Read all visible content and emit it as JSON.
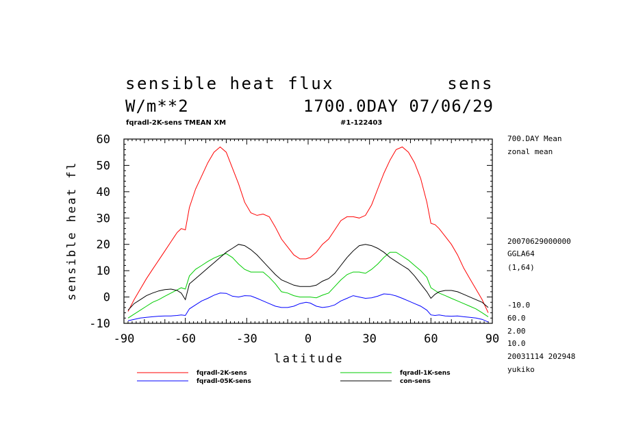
{
  "header": {
    "title": "sensible heat flux",
    "var_code": "sens",
    "units": "W/m**2",
    "time": "1700.0DAY 07/06/29",
    "subtitle_left": "fqradl-2K-sens TMEAN XM",
    "subtitle_right": "#1-122403"
  },
  "side_info": [
    "700.DAY Mean",
    "zonal mean",
    "20070629000000",
    "GGLA64",
    "(1,64)",
    "-10.0",
    "60.0",
    "2.00",
    "10.0",
    "20031114 202948",
    "yukiko"
  ],
  "chart_data": {
    "type": "line",
    "title": "sensible heat flux",
    "xlabel": "latitude",
    "ylabel": "sensible heat fl",
    "xlim": [
      -90,
      90
    ],
    "ylim": [
      -10,
      60
    ],
    "xticks": [
      -90,
      -60,
      -30,
      0,
      30,
      60,
      90
    ],
    "xtick_labels": [
      "-90",
      "-60",
      "-30",
      "0",
      "30",
      "60",
      "90"
    ],
    "yticks": [
      -10,
      0,
      10,
      20,
      30,
      40,
      50,
      60
    ],
    "ytick_labels": [
      "-10",
      "0",
      "10",
      "20",
      "30",
      "40",
      "50",
      "60"
    ],
    "grid": false,
    "legend_position": "below",
    "series": [
      {
        "name": "fqradl-2K-sens",
        "color": "#ff0000",
        "x": [
          -88,
          -85,
          -82,
          -79,
          -76,
          -73,
          -70,
          -67,
          -64,
          -62,
          -60,
          -58,
          -55,
          -52,
          -49,
          -46,
          -43,
          -40,
          -37,
          -34,
          -31,
          -28,
          -25,
          -22,
          -19,
          -16,
          -13,
          -10,
          -7,
          -4,
          -1,
          1,
          4,
          7,
          10,
          13,
          16,
          19,
          22,
          25,
          28,
          31,
          34,
          37,
          40,
          43,
          46,
          49,
          52,
          55,
          58,
          60,
          62,
          64,
          67,
          70,
          73,
          76,
          79,
          82,
          85,
          88
        ],
        "values": [
          -5.5,
          -1,
          3,
          7,
          10.5,
          14,
          17.5,
          21,
          24.5,
          26,
          25.5,
          34,
          41,
          46,
          51,
          55,
          57,
          55,
          49,
          43,
          36,
          32,
          31,
          31.5,
          30.5,
          26.5,
          22,
          19,
          16,
          14.5,
          14.5,
          15,
          17,
          20,
          22,
          25.5,
          29,
          30.5,
          30.5,
          30,
          31,
          35,
          41,
          47,
          52,
          56,
          57,
          55,
          51,
          45,
          36,
          28,
          27.5,
          26,
          23,
          20,
          16,
          11,
          7,
          3,
          -1,
          -6
        ]
      },
      {
        "name": "fqradl-1K-sens",
        "color": "#00cc00",
        "x": [
          -88,
          -85,
          -82,
          -79,
          -76,
          -73,
          -70,
          -67,
          -64,
          -62,
          -60,
          -58,
          -55,
          -52,
          -49,
          -46,
          -43,
          -40,
          -37,
          -34,
          -31,
          -28,
          -25,
          -22,
          -19,
          -16,
          -13,
          -10,
          -7,
          -4,
          -1,
          1,
          4,
          7,
          10,
          13,
          16,
          19,
          22,
          25,
          28,
          31,
          34,
          37,
          40,
          43,
          46,
          49,
          52,
          55,
          58,
          60,
          62,
          64,
          67,
          70,
          73,
          76,
          79,
          82,
          85,
          88
        ],
        "values": [
          -8,
          -6.5,
          -5,
          -3.5,
          -2,
          -1,
          0.3,
          1.5,
          2.7,
          3.5,
          3,
          8,
          10.5,
          12,
          13.5,
          14.8,
          15.8,
          16.5,
          15,
          12.5,
          10.5,
          9.5,
          9.5,
          9.5,
          7.5,
          5,
          2,
          1.5,
          0.5,
          0,
          0,
          0,
          -0.3,
          0.7,
          1.5,
          4,
          6.5,
          8.5,
          9.5,
          9.5,
          9,
          10.5,
          12.5,
          15,
          17,
          17,
          15.5,
          14,
          12,
          10,
          7.5,
          3.5,
          2.5,
          1.5,
          0.5,
          -0.5,
          -1.5,
          -2.5,
          -3.5,
          -4.5,
          -6,
          -7.5
        ]
      },
      {
        "name": "fqradl-05K-sens",
        "color": "#0000ff",
        "x": [
          -88,
          -85,
          -82,
          -79,
          -76,
          -73,
          -70,
          -67,
          -64,
          -62,
          -60,
          -58,
          -55,
          -52,
          -49,
          -46,
          -43,
          -40,
          -37,
          -34,
          -31,
          -28,
          -25,
          -22,
          -19,
          -16,
          -13,
          -10,
          -7,
          -4,
          -1,
          1,
          4,
          7,
          10,
          13,
          16,
          19,
          22,
          25,
          28,
          31,
          34,
          37,
          40,
          43,
          46,
          49,
          52,
          55,
          58,
          60,
          62,
          64,
          67,
          70,
          73,
          76,
          79,
          82,
          85,
          88
        ],
        "values": [
          -9,
          -8.5,
          -8,
          -7.7,
          -7.5,
          -7.3,
          -7.2,
          -7.2,
          -7,
          -6.8,
          -7,
          -4.5,
          -3,
          -1.5,
          -0.5,
          0.7,
          1.5,
          1.4,
          0.3,
          0,
          0.5,
          0.4,
          -0.5,
          -1.5,
          -2.5,
          -3.5,
          -4,
          -4,
          -3.5,
          -2.5,
          -2,
          -2.3,
          -3.5,
          -4,
          -3.7,
          -3,
          -1.5,
          -0.5,
          0.5,
          0,
          -0.5,
          -0.3,
          0.3,
          1.2,
          1,
          0.4,
          -0.5,
          -1.5,
          -2.5,
          -3.5,
          -5,
          -6.8,
          -7,
          -6.8,
          -7.2,
          -7.3,
          -7.2,
          -7.5,
          -7.7,
          -8,
          -8.5,
          -9.5
        ]
      },
      {
        "name": "con-sens",
        "color": "#000000",
        "x": [
          -88,
          -85,
          -82,
          -79,
          -76,
          -73,
          -70,
          -67,
          -64,
          -62,
          -60,
          -58,
          -55,
          -52,
          -49,
          -46,
          -43,
          -40,
          -37,
          -34,
          -31,
          -28,
          -25,
          -22,
          -19,
          -16,
          -13,
          -10,
          -7,
          -4,
          -1,
          1,
          4,
          7,
          10,
          13,
          16,
          19,
          22,
          25,
          28,
          31,
          34,
          37,
          40,
          43,
          46,
          49,
          52,
          55,
          58,
          60,
          62,
          64,
          67,
          70,
          73,
          76,
          79,
          82,
          85,
          88
        ],
        "values": [
          -5,
          -2.5,
          -1,
          0.5,
          1.5,
          2.3,
          2.8,
          3,
          2.5,
          1.5,
          -1,
          5,
          7,
          9,
          11,
          13,
          15,
          17,
          18.5,
          20,
          19.5,
          18,
          16,
          13.5,
          11,
          8.5,
          6.5,
          5.5,
          4.5,
          4,
          4,
          4,
          4.5,
          6,
          7,
          9,
          12,
          15,
          17.5,
          19.5,
          20,
          19.5,
          18.5,
          17,
          15,
          13.5,
          12,
          10.5,
          8,
          5,
          2,
          -0.5,
          1,
          2,
          2.5,
          2.5,
          2,
          1,
          0,
          -1,
          -2,
          -4
        ]
      }
    ]
  }
}
